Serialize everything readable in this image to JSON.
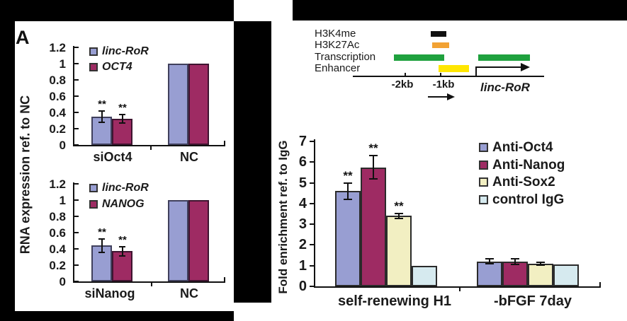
{
  "figure": {
    "panel_a": {
      "label": "A",
      "ylabel": "RNA expression ref. to NC"
    },
    "panel_b": {
      "diagram": {
        "tracks": [
          {
            "label": "H3K4me",
            "color": "#111111"
          },
          {
            "label": "H3K27Ac",
            "color": "#f2a233"
          },
          {
            "label": "Transcription",
            "color": "#1fa13e"
          },
          {
            "label": "Enhancer",
            "color": "#ffe600"
          }
        ],
        "scale_labels": [
          "-2kb",
          "-1kb"
        ],
        "gene_label": "linc-RoR"
      }
    }
  },
  "chart_data": [
    {
      "id": "a-top",
      "type": "bar",
      "categories": [
        "siOct4",
        "NC"
      ],
      "ylim": [
        0,
        1.2
      ],
      "yticks": [
        0,
        0.2,
        0.4,
        0.6,
        0.8,
        1,
        1.2
      ],
      "ytick_labels": [
        "0",
        "0.2",
        "0.4",
        "0.6",
        "0.8",
        "1",
        "1.2"
      ],
      "series": [
        {
          "name": "linc-RoR",
          "color": "#989ed2",
          "border": "#40405c",
          "values": [
            0.35,
            1.0
          ],
          "errors": [
            0.07,
            0
          ],
          "sig": [
            "**",
            ""
          ]
        },
        {
          "name": "OCT4",
          "color": "#9e2b63",
          "border": "#3f1430",
          "values": [
            0.32,
            1.0
          ],
          "errors": [
            0.05,
            0
          ],
          "sig": [
            "**",
            ""
          ]
        }
      ],
      "legend_position": "top-left-inside",
      "grid": false
    },
    {
      "id": "a-bottom",
      "type": "bar",
      "categories": [
        "siNanog",
        "NC"
      ],
      "ylim": [
        0,
        1.2
      ],
      "yticks": [
        0,
        0.2,
        0.4,
        0.6,
        0.8,
        1,
        1.2
      ],
      "ytick_labels": [
        "0",
        "0.2",
        "0.4",
        "0.6",
        "0.8",
        "1",
        "1.2"
      ],
      "series": [
        {
          "name": "linc-RoR",
          "color": "#989ed2",
          "border": "#40405c",
          "values": [
            0.44,
            1.0
          ],
          "errors": [
            0.08,
            0
          ],
          "sig": [
            "**",
            ""
          ]
        },
        {
          "name": "NANOG",
          "color": "#9e2b63",
          "border": "#3f1430",
          "values": [
            0.37,
            1.0
          ],
          "errors": [
            0.06,
            0
          ],
          "sig": [
            "**",
            ""
          ]
        }
      ],
      "legend_position": "top-left-inside",
      "grid": false
    },
    {
      "id": "b",
      "type": "bar",
      "ylabel": "Fold enrichment ref. to IgG",
      "categories": [
        "self-renewing H1",
        "-bFGF 7day"
      ],
      "ylim": [
        0,
        7
      ],
      "yticks": [
        0,
        1,
        2,
        3,
        4,
        5,
        6,
        7
      ],
      "ytick_labels": [
        "0",
        "1",
        "2",
        "3",
        "4",
        "5",
        "6",
        "7"
      ],
      "series": [
        {
          "name": "Anti-Oct4",
          "color": "#989ed2",
          "border": "#2b2b2b",
          "values": [
            4.6,
            1.2
          ],
          "errors": [
            0.4,
            0.12
          ],
          "sig": [
            "**",
            ""
          ]
        },
        {
          "name": "Anti-Nanog",
          "color": "#9e2b63",
          "border": "#2b2b2b",
          "values": [
            5.75,
            1.2
          ],
          "errors": [
            0.55,
            0.13
          ],
          "sig": [
            "**",
            ""
          ]
        },
        {
          "name": "Anti-Sox2",
          "color": "#f2efc2",
          "border": "#2b2b2b",
          "values": [
            3.4,
            1.1
          ],
          "errors": [
            0.12,
            0.07
          ],
          "sig": [
            "**",
            ""
          ]
        },
        {
          "name": "control IgG",
          "color": "#d6eaef",
          "border": "#2b2b2b",
          "values": [
            1.0,
            1.05
          ],
          "errors": [
            0,
            0
          ],
          "sig": [
            "",
            ""
          ]
        }
      ],
      "legend_position": "top-right-inside",
      "grid": false
    }
  ]
}
